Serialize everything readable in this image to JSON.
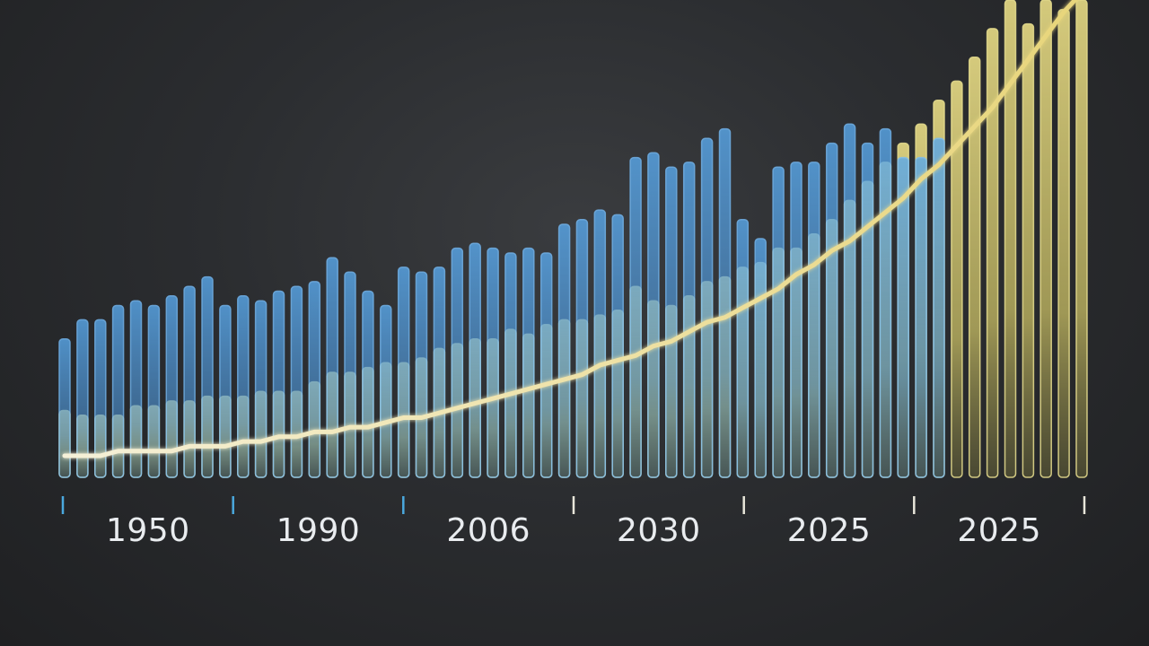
{
  "chart_data": {
    "type": "bar",
    "title": "",
    "xlabel": "",
    "ylabel": "",
    "x_tick_labels": [
      "1950",
      "1990",
      "2006",
      "2030",
      "2025",
      "2025"
    ],
    "ylim": [
      0,
      100
    ],
    "grid": false,
    "legend": "none",
    "colors": {
      "series_a": "#5aa9ec",
      "series_b": "#e7dc7a",
      "trend_line": "#f2e6b0",
      "axis_start": "#4aa8de",
      "axis_end": "#f0efe6"
    },
    "series": [
      {
        "values": [
          29,
          33,
          33,
          36,
          37,
          36,
          38,
          40,
          42,
          36,
          38,
          37,
          39,
          40,
          41,
          46,
          43,
          39,
          36,
          44,
          43,
          44,
          48,
          49,
          48,
          47,
          48,
          47,
          53,
          54,
          56,
          55,
          67,
          68,
          65,
          66,
          71,
          73,
          54,
          50,
          65,
          66,
          66,
          70,
          74,
          70,
          73,
          67,
          67,
          71,
          74,
          72,
          75,
          75,
          78,
          79,
          79,
          78
        ]
      },
      {
        "values": [
          14,
          13,
          13,
          13,
          15,
          15,
          16,
          16,
          17,
          17,
          17,
          18,
          18,
          18,
          20,
          22,
          22,
          23,
          24,
          24,
          25,
          27,
          28,
          29,
          29,
          31,
          30,
          32,
          33,
          33,
          34,
          35,
          40,
          37,
          36,
          38,
          41,
          42,
          44,
          45,
          48,
          48,
          51,
          54,
          58,
          62,
          66,
          70,
          74,
          79,
          83,
          88,
          94,
          100,
          95,
          100,
          98,
          100
        ]
      },
      {
        "values": [
          3,
          3,
          3,
          4,
          4,
          4,
          4,
          5,
          5,
          5,
          6,
          6,
          7,
          7,
          8,
          8,
          9,
          9,
          10,
          11,
          11,
          12,
          13,
          14,
          15,
          16,
          17,
          18,
          19,
          20,
          22,
          23,
          24,
          26,
          27,
          29,
          31,
          32,
          34,
          36,
          38,
          41,
          43,
          46,
          48,
          51,
          54,
          57,
          61,
          64,
          68,
          72,
          76,
          81,
          86,
          91,
          96,
          100
        ]
      }
    ]
  }
}
